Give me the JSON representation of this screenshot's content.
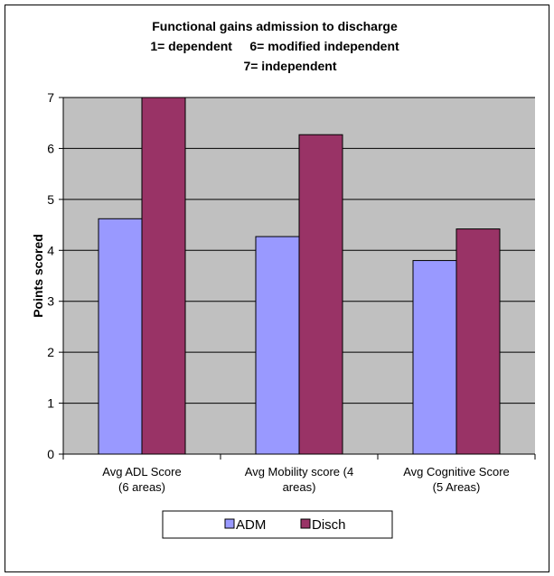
{
  "chart_data": {
    "type": "bar",
    "title_lines": [
      "Functional gains admission to discharge",
      "1= dependent     6= modified independent",
      "7= independent"
    ],
    "ylabel": "Points scored",
    "xlabel": "",
    "ylim": [
      0,
      7
    ],
    "yticks": [
      "0",
      "1",
      "2",
      "3",
      "4",
      "5",
      "6",
      "7"
    ],
    "grid": true,
    "legend_position": "bottom",
    "categories": [
      [
        "Avg ADL Score",
        "(6 areas)"
      ],
      [
        "Avg Mobility score (4",
        "areas)"
      ],
      [
        "Avg Cognitive Score",
        "(5 Areas)"
      ]
    ],
    "series": [
      {
        "name": "ADM",
        "color": "#9999ff",
        "values": [
          4.62,
          4.27,
          3.8
        ]
      },
      {
        "name": "Disch",
        "color": "#993366",
        "values": [
          7.0,
          6.27,
          4.42
        ]
      }
    ],
    "plot_background": "#c0c0c0"
  }
}
